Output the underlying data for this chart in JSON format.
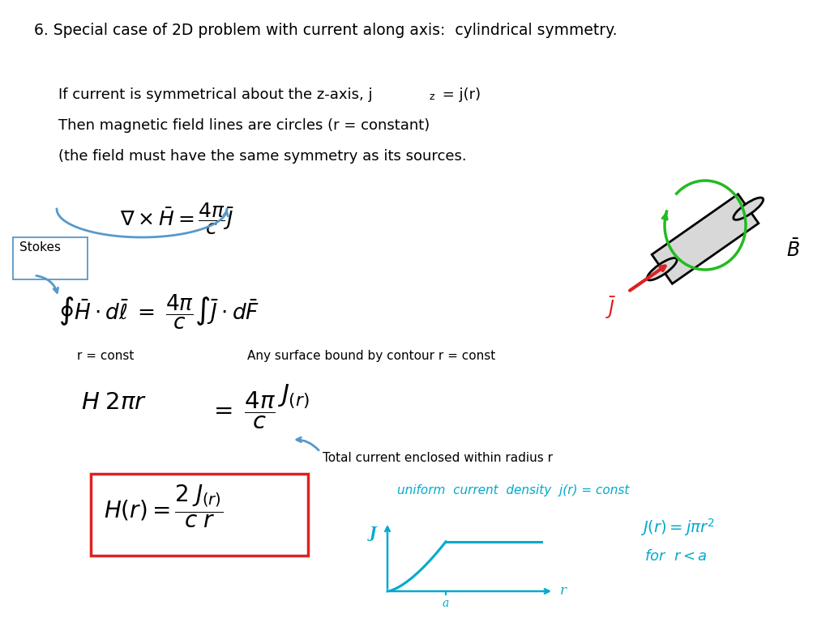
{
  "title": "6. Special case of 2D problem with current along axis:  cylindrical symmetry.",
  "line1": "If current is symmetrical about the z-axis, j",
  "line1b": " = j(r)",
  "line2": "Then magnetic field lines are circles (r = constant)",
  "line3": "(the field must have the same symmetry as its sources.",
  "stokes_label": "Stokes",
  "r_const": "r = const",
  "any_surface": "Any surface bound by contour r = const",
  "total_current": "Total current enclosed within radius r",
  "uniform_text": "uniform  current  density  j(r) = const",
  "for_text": "for  r < a",
  "bg_color": "#ffffff",
  "title_color": "#000000",
  "text_color": "#000000",
  "blue_color": "#5599cc",
  "red_color": "#dd2222",
  "cyan_color": "#00aacc",
  "green_color": "#22bb22",
  "box_color": "#dd2222"
}
